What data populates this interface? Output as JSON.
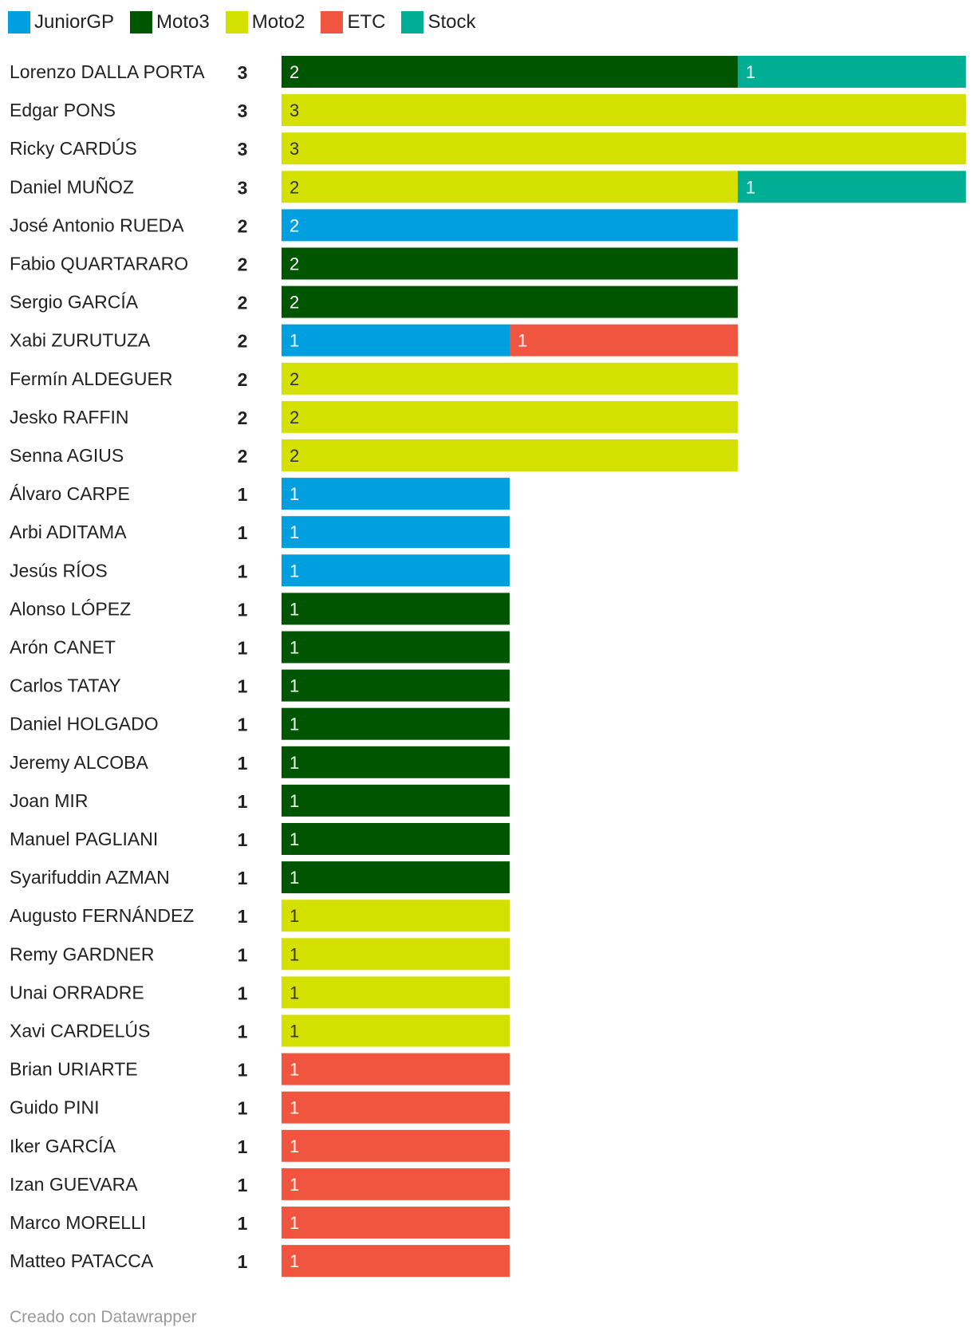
{
  "chart_data": {
    "type": "bar",
    "orientation": "horizontal",
    "stacked": true,
    "title": "",
    "xlabel": "",
    "ylabel": "",
    "xlim": [
      0,
      3
    ],
    "grid": false,
    "legend": "top-left",
    "series": [
      {
        "name": "JuniorGP",
        "color": "#00a0e0"
      },
      {
        "name": "Moto3",
        "color": "#005500"
      },
      {
        "name": "Moto2",
        "color": "#d4e000"
      },
      {
        "name": "ETC",
        "color": "#f05540"
      },
      {
        "name": "Stock",
        "color": "#00ad95"
      }
    ],
    "rows": [
      {
        "name": "Lorenzo DALLA PORTA",
        "total": "3",
        "segments": [
          {
            "series": "Moto3",
            "value": 2
          },
          {
            "series": "Stock",
            "value": 1
          }
        ]
      },
      {
        "name": "Edgar PONS",
        "total": "3",
        "segments": [
          {
            "series": "Moto2",
            "value": 3
          }
        ]
      },
      {
        "name": "Ricky CARDÚS",
        "total": "3",
        "segments": [
          {
            "series": "Moto2",
            "value": 3
          }
        ]
      },
      {
        "name": "Daniel MUÑOZ",
        "total": "3",
        "segments": [
          {
            "series": "Moto2",
            "value": 2
          },
          {
            "series": "Stock",
            "value": 1
          }
        ]
      },
      {
        "name": "José Antonio RUEDA",
        "total": "2",
        "segments": [
          {
            "series": "JuniorGP",
            "value": 2
          }
        ]
      },
      {
        "name": "Fabio QUARTARARO",
        "total": "2",
        "segments": [
          {
            "series": "Moto3",
            "value": 2
          }
        ]
      },
      {
        "name": "Sergio GARCÍA",
        "total": "2",
        "segments": [
          {
            "series": "Moto3",
            "value": 2
          }
        ]
      },
      {
        "name": "Xabi ZURUTUZA",
        "total": "2",
        "segments": [
          {
            "series": "JuniorGP",
            "value": 1
          },
          {
            "series": "ETC",
            "value": 1
          }
        ]
      },
      {
        "name": "Fermín ALDEGUER",
        "total": "2",
        "segments": [
          {
            "series": "Moto2",
            "value": 2
          }
        ]
      },
      {
        "name": "Jesko RAFFIN",
        "total": "2",
        "segments": [
          {
            "series": "Moto2",
            "value": 2
          }
        ]
      },
      {
        "name": "Senna AGIUS",
        "total": "2",
        "segments": [
          {
            "series": "Moto2",
            "value": 2
          }
        ]
      },
      {
        "name": "Álvaro CARPE",
        "total": "1",
        "segments": [
          {
            "series": "JuniorGP",
            "value": 1
          }
        ]
      },
      {
        "name": "Arbi ADITAMA",
        "total": "1",
        "segments": [
          {
            "series": "JuniorGP",
            "value": 1
          }
        ]
      },
      {
        "name": "Jesús RÍOS",
        "total": "1",
        "segments": [
          {
            "series": "JuniorGP",
            "value": 1
          }
        ]
      },
      {
        "name": "Alonso LÓPEZ",
        "total": "1",
        "segments": [
          {
            "series": "Moto3",
            "value": 1
          }
        ]
      },
      {
        "name": "Arón CANET",
        "total": "1",
        "segments": [
          {
            "series": "Moto3",
            "value": 1
          }
        ]
      },
      {
        "name": "Carlos TATAY",
        "total": "1",
        "segments": [
          {
            "series": "Moto3",
            "value": 1
          }
        ]
      },
      {
        "name": "Daniel HOLGADO",
        "total": "1",
        "segments": [
          {
            "series": "Moto3",
            "value": 1
          }
        ]
      },
      {
        "name": "Jeremy ALCOBA",
        "total": "1",
        "segments": [
          {
            "series": "Moto3",
            "value": 1
          }
        ]
      },
      {
        "name": "Joan MIR",
        "total": "1",
        "segments": [
          {
            "series": "Moto3",
            "value": 1
          }
        ]
      },
      {
        "name": "Manuel PAGLIANI",
        "total": "1",
        "segments": [
          {
            "series": "Moto3",
            "value": 1
          }
        ]
      },
      {
        "name": "Syarifuddin AZMAN",
        "total": "1",
        "segments": [
          {
            "series": "Moto3",
            "value": 1
          }
        ]
      },
      {
        "name": "Augusto FERNÁNDEZ",
        "total": "1",
        "segments": [
          {
            "series": "Moto2",
            "value": 1
          }
        ]
      },
      {
        "name": "Remy GARDNER",
        "total": "1",
        "segments": [
          {
            "series": "Moto2",
            "value": 1
          }
        ]
      },
      {
        "name": "Unai ORRADRE",
        "total": "1",
        "segments": [
          {
            "series": "Moto2",
            "value": 1
          }
        ]
      },
      {
        "name": "Xavi CARDELÚS",
        "total": "1",
        "segments": [
          {
            "series": "Moto2",
            "value": 1
          }
        ]
      },
      {
        "name": "Brian URIARTE",
        "total": "1",
        "segments": [
          {
            "series": "ETC",
            "value": 1
          }
        ]
      },
      {
        "name": "Guido PINI",
        "total": "1",
        "segments": [
          {
            "series": "ETC",
            "value": 1
          }
        ]
      },
      {
        "name": "Iker GARCÍA",
        "total": "1",
        "segments": [
          {
            "series": "ETC",
            "value": 1
          }
        ]
      },
      {
        "name": "Izan GUEVARA",
        "total": "1",
        "segments": [
          {
            "series": "ETC",
            "value": 1
          }
        ]
      },
      {
        "name": "Marco MORELLI",
        "total": "1",
        "segments": [
          {
            "series": "ETC",
            "value": 1
          }
        ]
      },
      {
        "name": "Matteo PATACCA",
        "total": "1",
        "segments": [
          {
            "series": "ETC",
            "value": 1
          }
        ]
      }
    ]
  },
  "footer": {
    "credit": "Creado con Datawrapper"
  }
}
